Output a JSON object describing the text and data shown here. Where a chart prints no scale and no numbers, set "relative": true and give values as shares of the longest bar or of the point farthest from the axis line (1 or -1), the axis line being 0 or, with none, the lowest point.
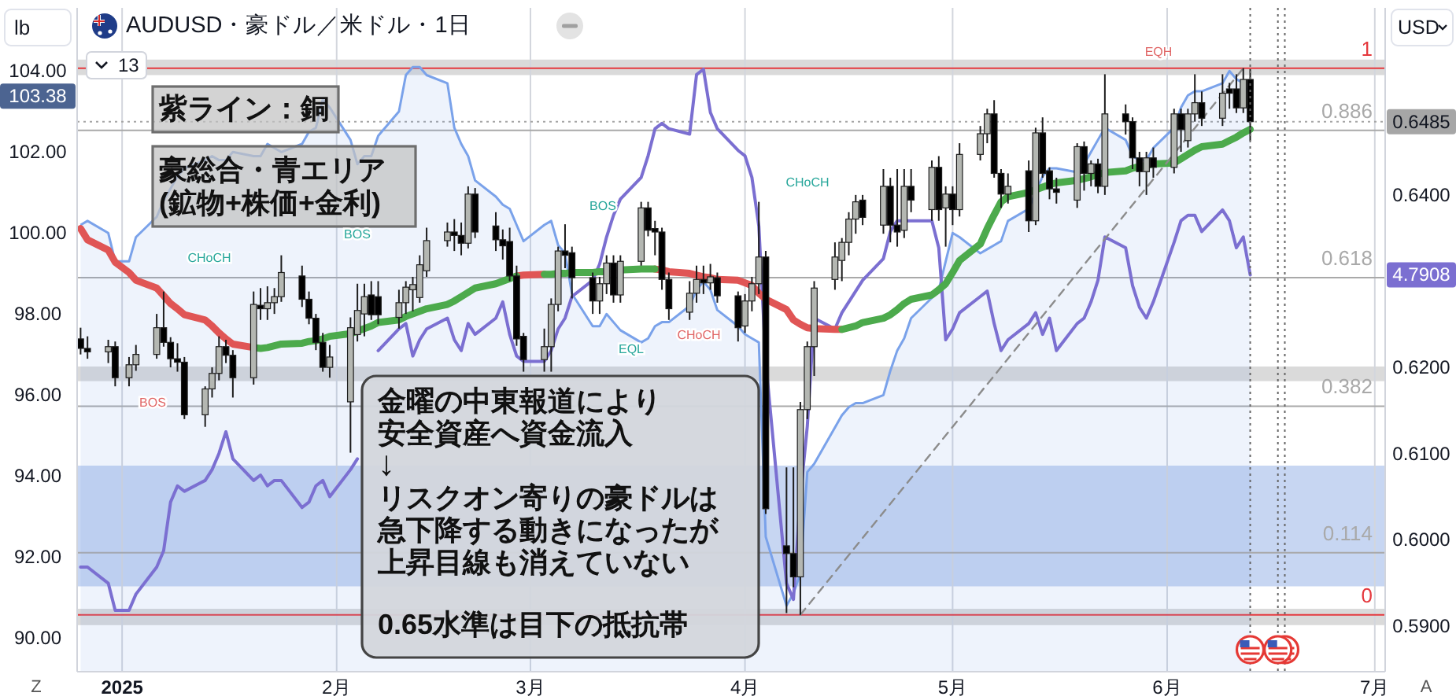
{
  "chart_data": [
    {
      "type": "candlestick",
      "title": "AUDUSD・豪ドル／米ドル・1日",
      "ylabel": "lb",
      "y2label": "USD",
      "x": [
        "2024-12-26",
        "2024-12-27",
        "2024-12-30",
        "2024-12-31",
        "2025-01-02",
        "2025-01-03",
        "2025-01-06",
        "2025-01-07",
        "2025-01-08",
        "2025-01-09",
        "2025-01-10",
        "2025-01-13",
        "2025-01-14",
        "2025-01-15",
        "2025-01-16",
        "2025-01-17",
        "2025-01-20",
        "2025-01-21",
        "2025-01-22",
        "2025-01-23",
        "2025-01-24",
        "2025-01-27",
        "2025-01-28",
        "2025-01-29",
        "2025-01-30",
        "2025-01-31",
        "2025-02-03",
        "2025-02-04",
        "2025-02-05",
        "2025-02-06",
        "2025-02-07",
        "2025-02-10",
        "2025-02-11",
        "2025-02-12",
        "2025-02-13",
        "2025-02-14",
        "2025-02-17",
        "2025-02-18",
        "2025-02-19",
        "2025-02-20",
        "2025-02-21",
        "2025-02-24",
        "2025-02-25",
        "2025-02-26",
        "2025-02-27",
        "2025-02-28",
        "2025-03-03",
        "2025-03-04",
        "2025-03-05",
        "2025-03-06",
        "2025-03-07",
        "2025-03-10",
        "2025-03-11",
        "2025-03-12",
        "2025-03-13",
        "2025-03-14",
        "2025-03-17",
        "2025-03-18",
        "2025-03-19",
        "2025-03-20",
        "2025-03-21",
        "2025-03-24",
        "2025-03-25",
        "2025-03-26",
        "2025-03-27",
        "2025-03-28",
        "2025-03-31",
        "2025-04-01",
        "2025-04-02",
        "2025-04-03",
        "2025-04-04",
        "2025-04-07",
        "2025-04-08",
        "2025-04-09",
        "2025-04-10",
        "2025-04-11",
        "2025-04-14",
        "2025-04-15",
        "2025-04-16",
        "2025-04-17",
        "2025-04-18",
        "2025-04-21",
        "2025-04-22",
        "2025-04-23",
        "2025-04-24",
        "2025-04-25",
        "2025-04-28",
        "2025-04-29",
        "2025-04-30",
        "2025-05-01",
        "2025-05-02",
        "2025-05-05",
        "2025-05-06",
        "2025-05-07",
        "2025-05-08",
        "2025-05-09",
        "2025-05-12",
        "2025-05-13",
        "2025-05-14",
        "2025-05-15",
        "2025-05-16",
        "2025-05-19",
        "2025-05-20",
        "2025-05-21",
        "2025-05-22",
        "2025-05-23",
        "2025-05-26",
        "2025-05-27",
        "2025-05-28",
        "2025-05-29",
        "2025-05-30",
        "2025-06-02",
        "2025-06-03",
        "2025-06-04",
        "2025-06-05",
        "2025-06-06",
        "2025-06-09",
        "2025-06-10",
        "2025-06-11",
        "2025-06-12",
        "2025-06-13"
      ],
      "xlim": [
        "2024-12-25T12:00",
        "2025-07-02T12:00"
      ],
      "xticks": [
        {
          "value": "2025-01-01",
          "label": "2025"
        },
        {
          "value": "2025-02-01",
          "label": "2月"
        },
        {
          "value": "2025-03-01",
          "label": "3月"
        },
        {
          "value": "2025-04-01",
          "label": "4月"
        },
        {
          "value": "2025-05-01",
          "label": "5月"
        },
        {
          "value": "2025-06-01",
          "label": "6月"
        },
        {
          "value": "2025-07-01",
          "label": "7月"
        }
      ],
      "ylim": [
        89.17,
        105.56
      ],
      "yticks": [
        {
          "value": 90,
          "label": "90.00"
        },
        {
          "value": 92,
          "label": "92.00"
        },
        {
          "value": 94,
          "label": "94.00"
        },
        {
          "value": 96,
          "label": "96.00"
        },
        {
          "value": 98,
          "label": "98.00"
        },
        {
          "value": 100,
          "label": "100.00"
        },
        {
          "value": 102,
          "label": "102.00"
        },
        {
          "value": 103.38,
          "label": "103.38"
        },
        {
          "value": 104,
          "label": "104.00"
        }
      ],
      "y2lim": [
        0.5847,
        0.6617
      ],
      "y2ticks": [
        {
          "value": 0.59,
          "label": "0.5900"
        },
        {
          "value": 0.6,
          "label": "0.6000"
        },
        {
          "value": 0.61,
          "label": "0.6100"
        },
        {
          "value": 0.62,
          "label": "0.6200"
        },
        {
          "value": 0.64,
          "label": "0.6400"
        }
      ],
      "grid": "x",
      "series": [
        {
          "type": "area",
          "color": "#7aa2ea",
          "axis": "y",
          "values": [
            100.2,
            100.3,
            100.0,
            99.3,
            99.3,
            99.9,
            100.4,
            100.8,
            101.1,
            101.4,
            101.6,
            101.8,
            101.9,
            101.8,
            101.8,
            102.0,
            101.9,
            101.9,
            102.2,
            102.1,
            102.0,
            102.2,
            102.5,
            102.6,
            103.3,
            103.1,
            102.3,
            101.7,
            101.9,
            101.9,
            102.4,
            103.0,
            103.9,
            104.1,
            104.1,
            103.9,
            103.7,
            102.6,
            102.2,
            101.9,
            101.3,
            100.9,
            100.7,
            100.6,
            100.2,
            99.8,
            100.2,
            100.3,
            99.7,
            99.5,
            98.5,
            97.7,
            97.7,
            98.0,
            97.8,
            97.6,
            97.3,
            97.4,
            97.7,
            97.8,
            97.8,
            98.2,
            98.6,
            98.8,
            98.6,
            98.1,
            97.7,
            97.5,
            97.4,
            97.3,
            92.5,
            90.8,
            91.1,
            91.6,
            94.1,
            94.3,
            95.2,
            95.5,
            95.7,
            95.8,
            95.8,
            96.0,
            96.6,
            97.1,
            97.4,
            97.9,
            98.4,
            98.6,
            99.3,
            100.0,
            99.9,
            99.5,
            99.6,
            99.7,
            99.8,
            100.3,
            100.6,
            101.0,
            101.4,
            101.6,
            101.6,
            101.5,
            101.7,
            102.0,
            102.3,
            102.6,
            102.3,
            101.9,
            101.8,
            101.8,
            102.1,
            102.6,
            103.1,
            103.4,
            103.5,
            103.5,
            103.7,
            104.0,
            103.8,
            103.7,
            103.38
          ]
        },
        {
          "type": "line",
          "color": "#e05555",
          "axis": "y2",
          "values": [
            0.6361,
            0.6348,
            0.6336,
            0.6322,
            0.631,
            0.6301,
            0.6292,
            0.6283,
            0.6274,
            0.6268,
            0.6261,
            0.6255,
            0.6248,
            0.624,
            0.6233,
            0.6227,
            0.6223,
            null,
            null,
            null,
            null,
            null,
            null,
            null,
            null,
            null,
            null,
            null,
            null,
            null,
            null,
            null,
            null,
            null,
            null,
            null,
            null,
            null,
            null,
            null,
            null,
            null,
            null,
            null,
            0.6306,
            0.6307,
            0.6308,
            null,
            null,
            null,
            null,
            null,
            null,
            null,
            null,
            null,
            null,
            null,
            0.6314,
            0.6313,
            0.6311,
            0.6309,
            0.6307,
            0.6305,
            0.6304,
            0.6302,
            0.6301,
            0.6298,
            0.6295,
            0.6286,
            0.6279,
            0.6267,
            0.6255,
            0.625,
            0.6246,
            0.6245,
            0.6244,
            0.6244,
            null,
            null,
            null,
            null,
            null,
            null,
            null,
            null,
            null,
            null,
            null,
            null,
            null,
            null,
            null,
            null,
            null,
            null,
            null,
            null,
            null,
            null,
            null,
            null,
            null,
            null,
            null,
            null,
            null,
            null,
            null,
            null,
            null,
            null,
            null,
            null,
            null,
            null,
            null,
            null,
            null,
            null,
            null
          ]
        },
        {
          "type": "line",
          "color": "#4caa4c",
          "axis": "y2",
          "values": [
            null,
            null,
            null,
            null,
            null,
            null,
            null,
            null,
            null,
            null,
            null,
            null,
            null,
            null,
            null,
            null,
            0.6223,
            0.6222,
            0.6223,
            0.6225,
            0.6227,
            0.6228,
            0.623,
            0.6231,
            0.6233,
            0.6236,
            0.6239,
            0.6242,
            0.6245,
            0.6248,
            0.6252,
            0.6255,
            0.6259,
            0.6262,
            0.6265,
            0.6268,
            0.6273,
            0.6277,
            0.6282,
            0.6287,
            0.6292,
            0.6297,
            0.63,
            0.6303,
            0.6306,
            null,
            0.6308,
            0.6308,
            0.6309,
            0.6309,
            0.631,
            0.631,
            0.6311,
            0.6311,
            null,
            0.6313,
            0.6314,
            0.6314,
            0.6314,
            null,
            null,
            null,
            null,
            null,
            null,
            null,
            null,
            null,
            null,
            null,
            null,
            null,
            null,
            null,
            null,
            null,
            null,
            0.6244,
            0.6246,
            0.6248,
            0.6252,
            0.6257,
            0.6261,
            0.6267,
            0.6274,
            0.6279,
            0.6284,
            0.629,
            0.6297,
            0.631,
            0.6324,
            0.6343,
            0.6361,
            0.6377,
            0.6392,
            0.6398,
            0.6403,
            0.6406,
            0.6409,
            0.6412,
            0.6414,
            0.6417,
            0.6419,
            0.6421,
            0.6424,
            0.6426,
            0.6428,
            0.6431,
            0.6433,
            0.6434,
            0.6436,
            0.6437,
            0.6442,
            0.6447,
            0.6452,
            0.6456,
            0.6459,
            0.6463,
            0.6467,
            0.6472,
            0.6476
          ]
        },
        {
          "type": "line",
          "color": "#8c8c8c",
          "axis": "y2",
          "line_style": "dashed",
          "x": [
            "2025-04-09",
            "2025-06-12"
          ],
          "values": [
            0.5913,
            0.6547
          ]
        },
        {
          "axis": "y2",
          "ohlc": [
            [
              0.6233,
              0.6246,
              0.6215,
              0.6222
            ],
            [
              0.6222,
              0.6236,
              0.621,
              0.6218
            ],
            [
              0.6218,
              0.6232,
              0.6205,
              0.6224
            ],
            [
              0.6224,
              0.623,
              0.6178,
              0.6188
            ],
            [
              0.6188,
              0.6212,
              0.6178,
              0.6203
            ],
            [
              0.6203,
              0.6226,
              0.6196,
              0.6215
            ],
            [
              0.6215,
              0.6262,
              0.621,
              0.6246
            ],
            [
              0.6246,
              0.6288,
              0.6224,
              0.6229
            ],
            [
              0.6229,
              0.6235,
              0.62,
              0.621
            ],
            [
              0.621,
              0.6228,
              0.6195,
              0.6206
            ],
            [
              0.6206,
              0.6212,
              0.614,
              0.6145
            ],
            [
              0.6145,
              0.6178,
              0.6131,
              0.6175
            ],
            [
              0.6175,
              0.62,
              0.6165,
              0.6193
            ],
            [
              0.6193,
              0.6236,
              0.6185,
              0.6224
            ],
            [
              0.6224,
              0.6232,
              0.6205,
              0.6214
            ],
            [
              0.6214,
              0.622,
              0.6165,
              0.6188
            ],
            [
              0.6188,
              0.6288,
              0.618,
              0.6273
            ],
            [
              0.6272,
              0.6292,
              0.6255,
              0.6268
            ],
            [
              0.6268,
              0.6294,
              0.6255,
              0.6275
            ],
            [
              0.6275,
              0.6292,
              0.6262,
              0.6282
            ],
            [
              0.6282,
              0.633,
              0.6276,
              0.631
            ],
            [
              0.6306,
              0.6318,
              0.627,
              0.6279
            ],
            [
              0.6279,
              0.6288,
              0.625,
              0.6257
            ],
            [
              0.6257,
              0.6262,
              0.622,
              0.6229
            ],
            [
              0.6229,
              0.624,
              0.6195,
              0.62
            ],
            [
              0.62,
              0.6226,
              0.6188,
              0.6212
            ],
            [
              0.616,
              0.6258,
              0.6101,
              0.6246
            ],
            [
              0.6238,
              0.6297,
              0.623,
              0.6266
            ],
            [
              0.6262,
              0.6297,
              0.6236,
              0.6282
            ],
            [
              0.6284,
              0.63,
              0.6255,
              0.6261
            ],
            [
              0.6282,
              0.63,
              0.625,
              0.6261
            ],
            [
              0.6258,
              0.629,
              0.6245,
              0.6275
            ],
            [
              0.6275,
              0.63,
              0.6262,
              0.6293
            ],
            [
              0.629,
              0.6305,
              0.6265,
              0.6296
            ],
            [
              0.6281,
              0.633,
              0.6275,
              0.6319
            ],
            [
              0.6312,
              0.6362,
              0.6305,
              0.6347
            ],
            [
              0.6347,
              0.6368,
              0.634,
              0.6357
            ],
            [
              0.6357,
              0.6372,
              0.6335,
              0.6353
            ],
            [
              0.6353,
              0.6368,
              0.633,
              0.6344
            ],
            [
              0.6344,
              0.641,
              0.6338,
              0.6401
            ],
            [
              0.6401,
              0.6408,
              0.635,
              0.6357
            ],
            [
              0.6364,
              0.638,
              0.6335,
              0.6348
            ],
            [
              0.6348,
              0.636,
              0.6325,
              0.6341
            ],
            [
              0.6346,
              0.6362,
              0.63,
              0.6306
            ],
            [
              0.6306,
              0.6318,
              0.6225,
              0.6233
            ],
            [
              0.6236,
              0.624,
              0.6195,
              0.6209
            ],
            [
              0.6209,
              0.6245,
              0.6195,
              0.6224
            ],
            [
              0.6224,
              0.628,
              0.6195,
              0.6273
            ],
            [
              0.6273,
              0.634,
              0.6265,
              0.6335
            ],
            [
              0.6335,
              0.6366,
              0.6315,
              0.633
            ],
            [
              0.6333,
              0.634,
              0.628,
              0.6304
            ],
            [
              0.6304,
              0.631,
              0.6262,
              0.6277
            ],
            [
              0.6277,
              0.6305,
              0.6262,
              0.6297
            ],
            [
              0.6297,
              0.633,
              0.6285,
              0.6321
            ],
            [
              0.6321,
              0.633,
              0.6275,
              0.6284
            ],
            [
              0.6284,
              0.633,
              0.6275,
              0.6323
            ],
            [
              0.6323,
              0.6392,
              0.6318,
              0.6385
            ],
            [
              0.6385,
              0.6392,
              0.6352,
              0.6359
            ],
            [
              0.6361,
              0.637,
              0.633,
              0.6357
            ],
            [
              0.6357,
              0.6362,
              0.629,
              0.6302
            ],
            [
              0.6302,
              0.631,
              0.6255,
              0.6268
            ],
            [
              0.6264,
              0.63,
              0.6255,
              0.6286
            ],
            [
              0.6286,
              0.6318,
              0.6275,
              0.6302
            ],
            [
              0.6302,
              0.6318,
              0.6285,
              0.6298
            ],
            [
              0.6298,
              0.632,
              0.629,
              0.6305
            ],
            [
              0.6304,
              0.631,
              0.6275,
              0.6283
            ],
            [
              0.6283,
              0.6288,
              0.623,
              0.6246
            ],
            [
              0.6248,
              0.6285,
              0.624,
              0.6277
            ],
            [
              0.6277,
              0.6305,
              0.6265,
              0.6297
            ],
            [
              0.6297,
              0.6392,
              0.6285,
              0.6328
            ],
            [
              0.6328,
              0.6335,
              0.603,
              0.6036
            ],
            [
              0.5993,
              0.6084,
              0.5915,
              0.5984
            ],
            [
              0.5984,
              0.6084,
              0.5945,
              0.5957
            ],
            [
              0.5957,
              0.616,
              0.5913,
              0.6151
            ],
            [
              0.6151,
              0.623,
              0.614,
              0.6224
            ],
            [
              0.6224,
              0.63,
              0.619,
              0.6292
            ],
            [
              0.6302,
              0.6345,
              0.629,
              0.6328
            ],
            [
              0.6324,
              0.635,
              0.63,
              0.6345
            ],
            [
              0.6345,
              0.638,
              0.633,
              0.6372
            ],
            [
              0.6372,
              0.64,
              0.6355,
              0.6392
            ],
            [
              0.6394,
              0.64,
              0.6365,
              0.6374
            ],
            [
              0.6365,
              0.643,
              0.6355,
              0.641
            ],
            [
              0.641,
              0.642,
              0.6345,
              0.6365
            ],
            [
              0.6365,
              0.643,
              0.634,
              0.6357
            ],
            [
              0.6359,
              0.643,
              0.635,
              0.641
            ],
            [
              0.641,
              0.643,
              0.638,
              0.6394
            ],
            [
              0.6383,
              0.644,
              0.637,
              0.6432
            ],
            [
              0.6432,
              0.6445,
              0.637,
              0.6383
            ],
            [
              0.6385,
              0.641,
              0.634,
              0.6401
            ],
            [
              0.6401,
              0.641,
              0.6365,
              0.6383
            ],
            [
              0.6383,
              0.646,
              0.6375,
              0.6447
            ],
            [
              0.6447,
              0.648,
              0.644,
              0.6471
            ],
            [
              0.6471,
              0.65,
              0.646,
              0.6494
            ],
            [
              0.6494,
              0.651,
              0.642,
              0.6425
            ],
            [
              0.6425,
              0.643,
              0.6385,
              0.6401
            ],
            [
              0.6401,
              0.6425,
              0.639,
              0.641
            ],
            [
              0.6428,
              0.644,
              0.6357,
              0.637
            ],
            [
              0.637,
              0.6478,
              0.6365,
              0.6472
            ],
            [
              0.6472,
              0.649,
              0.642,
              0.6425
            ],
            [
              0.6428,
              0.6432,
              0.6395,
              0.6407
            ],
            [
              0.6407,
              0.642,
              0.639,
              0.6403
            ],
            [
              0.6394,
              0.646,
              0.6385,
              0.6456
            ],
            [
              0.6456,
              0.6462,
              0.6405,
              0.6425
            ],
            [
              0.6425,
              0.644,
              0.641,
              0.6436
            ],
            [
              0.6436,
              0.6442,
              0.6402,
              0.641
            ],
            [
              0.641,
              0.654,
              0.64,
              0.6494
            ],
            [
              0.6494,
              0.6505,
              0.647,
              0.6485
            ],
            [
              0.6485,
              0.649,
              0.643,
              0.6443
            ],
            [
              0.6443,
              0.645,
              0.641,
              0.6427
            ],
            [
              0.6427,
              0.645,
              0.64,
              0.6443
            ],
            [
              0.6443,
              0.6455,
              0.642,
              0.6432
            ],
            [
              0.6432,
              0.65,
              0.6425,
              0.6494
            ],
            [
              0.6494,
              0.65,
              0.645,
              0.6476
            ],
            [
              0.6463,
              0.65,
              0.6455,
              0.6494
            ],
            [
              0.6494,
              0.654,
              0.6485,
              0.6507
            ],
            [
              0.6507,
              0.652,
              0.648,
              0.6489
            ],
            [
              0.6489,
              0.654,
              0.648,
              0.6518
            ],
            [
              0.6523,
              0.653,
              0.65,
              0.6518
            ],
            [
              0.6523,
              0.654,
              0.6495,
              0.6501
            ],
            [
              0.6501,
              0.6547,
              0.6495,
              0.6534
            ],
            [
              0.6534,
              0.6546,
              0.6463,
              0.6485
            ]
          ],
          "colors": [
            "#000000",
            "#000000",
            "#b4b7b2",
            "#000000",
            "#b4b7b2",
            "#b4b7b2",
            "#b4b7b2",
            "#000000",
            "#000000",
            "#000000",
            "#000000",
            "#b4b7b2",
            "#b4b7b2",
            "#b4b7b2",
            "#000000",
            "#000000",
            "#b4b7b2",
            "#000000",
            "#b4b7b2",
            "#b4b7b2",
            "#b4b7b2",
            "#000000",
            "#000000",
            "#000000",
            "#000000",
            "#b4b7b2",
            "#b4b7b2",
            "#b4b7b2",
            "#b4b7b2",
            "#000000",
            "#000000",
            "#b4b7b2",
            "#b4b7b2",
            "#b4b7b2",
            "#b4b7b2",
            "#b4b7b2",
            "#b4b7b2",
            "#000000",
            "#000000",
            "#b4b7b2",
            "#000000",
            "#000000",
            "#000000",
            "#000000",
            "#000000",
            "#000000",
            "#b4b7b2",
            "#b4b7b2",
            "#b4b7b2",
            "#000000",
            "#000000",
            "#000000",
            "#b4b7b2",
            "#b4b7b2",
            "#000000",
            "#b4b7b2",
            "#b4b7b2",
            "#000000",
            "#000000",
            "#000000",
            "#000000",
            "#b4b7b2",
            "#b4b7b2",
            "#000000",
            "#b4b7b2",
            "#000000",
            "#000000",
            "#b4b7b2",
            "#b4b7b2",
            "#b4b7b2",
            "#000000",
            "#000000",
            "#000000",
            "#b4b7b2",
            "#b4b7b2",
            "#b4b7b2",
            "#b4b7b2",
            "#b4b7b2",
            "#b4b7b2",
            "#b4b7b2",
            "#000000",
            "#b4b7b2",
            "#000000",
            "#000000",
            "#b4b7b2",
            "#000000",
            "#b4b7b2",
            "#000000",
            "#b4b7b2",
            "#000000",
            "#b4b7b2",
            "#b4b7b2",
            "#b4b7b2",
            "#000000",
            "#000000",
            "#b4b7b2",
            "#000000",
            "#b4b7b2",
            "#000000",
            "#000000",
            "#000000",
            "#b4b7b2",
            "#000000",
            "#b4b7b2",
            "#000000",
            "#b4b7b2",
            "#000000",
            "#000000",
            "#000000",
            "#b4b7b2",
            "#000000",
            "#b4b7b2",
            "#000000",
            "#b4b7b2",
            "#b4b7b2",
            "#000000",
            "#b4b7b2",
            "#000000",
            "#000000",
            "#b4b7b2",
            "#000000"
          ]
        }
      ],
      "ref_lines": [
        {
          "axis": "y2",
          "value": 0.6547,
          "color": "#e5393e"
        },
        {
          "axis": "y2",
          "value": 0.6475,
          "color": "#a9a9a9"
        },
        {
          "axis": "y2",
          "value": 0.6304,
          "color": "#a9a9a9"
        },
        {
          "axis": "y2",
          "value": 0.6155,
          "color": "#a9a9a9"
        },
        {
          "axis": "y2",
          "value": 0.5985,
          "color": "#a9a9a9"
        },
        {
          "axis": "y2",
          "value": 0.5913,
          "color": "#e5393e"
        },
        {
          "axis": "y2",
          "value": 0.6485,
          "label": "0.6485",
          "color": "#a6a6a6",
          "line_style": "dotted"
        },
        {
          "axis": "x",
          "value": "2025-06-13",
          "color": "#666666",
          "line_style": "dotted"
        },
        {
          "axis": "x",
          "value": "2025-06-17",
          "color": "#666666",
          "line_style": "dotted"
        },
        {
          "axis": "x",
          "value": "2025-06-18",
          "color": "#666666",
          "line_style": "dotted"
        }
      ],
      "bands": [
        {
          "axis": "y2",
          "from": 0.5946,
          "to": 0.6086,
          "color": "#c7d6f2"
        },
        {
          "axis": "y2",
          "from": 0.6539,
          "to": 0.6557,
          "color": "#dadada"
        },
        {
          "axis": "y2",
          "from": 0.6184,
          "to": 0.6201,
          "color": "#dadada"
        },
        {
          "axis": "y2",
          "from": 0.5901,
          "to": 0.592,
          "color": "#dadada"
        }
      ],
      "annotations": [
        "紫ライン：銅",
        "豪総合・青エリア",
        "(鉱物+株価+金利)",
        "金曜の中東報道により",
        "安全資産へ資金流入",
        "↓",
        "リスクオン寄りの豪ドルは",
        "急下降する動きになったが",
        "上昇目線も消えていない",
        "0.65水準は目下の抵抗帯",
        "BOS",
        "CHoCH",
        "BOS",
        "BOS",
        "EQL",
        "CHoCH",
        "CHoCH",
        "EQH",
        "13",
        "Z",
        "A",
        "1",
        "0.886",
        "0.618",
        "0.382",
        "0.114",
        "0"
      ]
    },
    {
      "type": "line",
      "relative": true,
      "x": [
        "2024-12-26",
        "2024-12-27",
        "2024-12-30",
        "2024-12-31",
        "2025-01-02",
        "2025-01-03",
        "2025-01-06",
        "2025-01-07",
        "2025-01-08",
        "2025-01-09",
        "2025-01-10",
        "2025-01-13",
        "2025-01-14",
        "2025-01-15",
        "2025-01-16",
        "2025-01-17",
        "2025-01-20",
        "2025-01-21",
        "2025-01-22",
        "2025-01-23",
        "2025-01-24",
        "2025-01-27",
        "2025-01-28",
        "2025-01-29",
        "2025-01-30",
        "2025-01-31",
        "2025-02-03",
        "2025-02-04",
        "2025-02-05",
        "2025-02-06",
        "2025-02-07",
        "2025-02-10",
        "2025-02-11",
        "2025-02-12",
        "2025-02-13",
        "2025-02-14",
        "2025-02-17",
        "2025-02-18",
        "2025-02-19",
        "2025-02-20",
        "2025-02-21",
        "2025-02-24",
        "2025-02-25",
        "2025-02-26",
        "2025-02-27",
        "2025-02-28",
        "2025-03-03",
        "2025-03-04",
        "2025-03-05",
        "2025-03-06",
        "2025-03-07",
        "2025-03-10",
        "2025-03-11",
        "2025-03-12",
        "2025-03-13",
        "2025-03-14",
        "2025-03-17",
        "2025-03-18",
        "2025-03-19",
        "2025-03-20",
        "2025-03-21",
        "2025-03-24",
        "2025-03-25",
        "2025-03-26",
        "2025-03-27",
        "2025-03-28",
        "2025-03-31",
        "2025-04-01",
        "2025-04-02",
        "2025-04-03",
        "2025-04-04",
        "2025-04-07",
        "2025-04-08",
        "2025-04-09",
        "2025-04-10",
        "2025-04-11",
        "2025-04-14",
        "2025-04-15",
        "2025-04-16",
        "2025-04-17",
        "2025-04-18",
        "2025-04-21",
        "2025-04-22",
        "2025-04-23",
        "2025-04-24",
        "2025-04-25",
        "2025-04-28",
        "2025-04-29",
        "2025-04-30",
        "2025-05-01",
        "2025-05-02",
        "2025-05-05",
        "2025-05-06",
        "2025-05-07",
        "2025-05-08",
        "2025-05-09",
        "2025-05-12",
        "2025-05-13",
        "2025-05-14",
        "2025-05-15",
        "2025-05-16",
        "2025-05-19",
        "2025-05-20",
        "2025-05-21",
        "2025-05-22",
        "2025-05-23",
        "2025-05-26",
        "2025-05-27",
        "2025-05-28",
        "2025-05-29",
        "2025-05-30",
        "2025-06-02",
        "2025-06-03",
        "2025-06-04",
        "2025-06-05",
        "2025-06-06",
        "2025-06-09",
        "2025-06-10",
        "2025-06-11",
        "2025-06-12",
        "2025-06-13"
      ],
      "xlim": [
        "2024-12-25T12:00",
        "2025-07-02T12:00"
      ],
      "series": [
        {
          "color": "#7b6fd1",
          "values": [
            0.08,
            0.08,
            0.05,
            0.0,
            0.0,
            0.03,
            0.08,
            0.11,
            0.2,
            0.23,
            0.22,
            0.24,
            0.26,
            0.29,
            0.33,
            0.28,
            0.24,
            0.25,
            0.23,
            0.24,
            0.24,
            0.19,
            0.2,
            0.23,
            0.24,
            0.21,
            0.26,
            0.28,
            null,
            null,
            0.48,
            0.52,
            0.53,
            0.47,
            0.5,
            0.52,
            0.54,
            0.5,
            0.48,
            0.53,
            0.51,
            0.54,
            0.57,
            0.51,
            0.47,
            0.46,
            0.46,
            0.48,
            0.52,
            0.54,
            0.58,
            0.61,
            0.64,
            0.69,
            0.73,
            0.76,
            0.8,
            0.84,
            0.89,
            0.9,
            0.89,
            0.88,
            0.99,
            1.0,
            0.92,
            0.89,
            0.85,
            0.84,
            0.8,
            0.71,
            0.46,
            0.05,
            0.02,
            0.21,
            0.34,
            0.54,
            0.52,
            0.55,
            0.57,
            0.59,
            0.61,
            0.65,
            0.7,
            0.72,
            0.72,
            0.72,
            0.72,
            0.67,
            0.5,
            0.52,
            0.55,
            0.58,
            0.59,
            0.53,
            0.48,
            0.5,
            0.53,
            0.55,
            0.51,
            0.54,
            0.48,
            0.53,
            0.54,
            0.57,
            0.61,
            0.69,
            0.67,
            0.6,
            0.56,
            0.54,
            0.57,
            0.68,
            0.72,
            0.73,
            0.73,
            0.7,
            0.74,
            0.72,
            0.67,
            0.69,
            0.62
          ]
        }
      ],
      "annotations": [
        "4.7908"
      ]
    }
  ]
}
